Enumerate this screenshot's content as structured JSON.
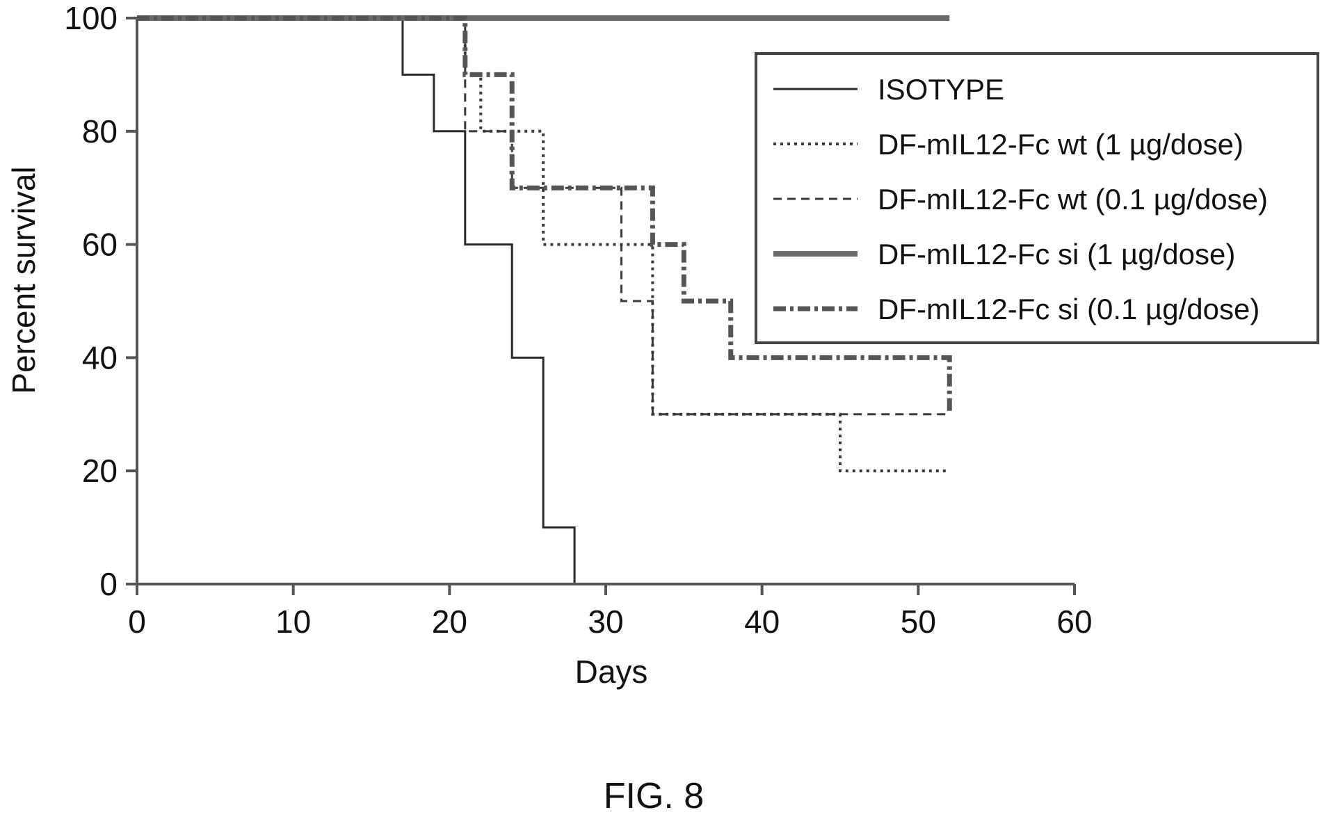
{
  "chart_data": {
    "type": "line",
    "xlabel": "Days",
    "ylabel": "Percent survival",
    "xlim": [
      0,
      60
    ],
    "ylim": [
      0,
      100
    ],
    "x_ticks": [
      0,
      10,
      20,
      30,
      40,
      50,
      60
    ],
    "y_ticks": [
      0,
      20,
      40,
      60,
      80,
      100
    ],
    "grid": false,
    "legend_position": "top-right",
    "step": true,
    "series": [
      {
        "name": "ISOTYPE",
        "style": "solid",
        "x": [
          0,
          17,
          19,
          21,
          24,
          26,
          28
        ],
        "y": [
          100,
          90,
          80,
          60,
          40,
          10,
          0
        ]
      },
      {
        "name": "DF-mIL12-Fc wt (1 µg/dose)",
        "style": "dotted",
        "x": [
          0,
          21,
          22,
          24,
          26,
          31,
          33,
          38,
          45,
          52
        ],
        "y": [
          100,
          90,
          80,
          80,
          60,
          60,
          30,
          30,
          20,
          20
        ]
      },
      {
        "name": "DF-mIL12-Fc wt (0.1 µg/dose)",
        "style": "dashed",
        "x": [
          0,
          21,
          24,
          26,
          31,
          33,
          52
        ],
        "y": [
          100,
          80,
          70,
          70,
          50,
          30,
          30
        ]
      },
      {
        "name": "DF-mIL12-Fc si (1 µg/dose)",
        "style": "bold",
        "x": [
          0,
          52
        ],
        "y": [
          100,
          100
        ]
      },
      {
        "name": "DF-mIL12-Fc si (0.1 µg/dose)",
        "style": "bold-dashdot",
        "x": [
          0,
          21,
          24,
          31,
          33,
          35,
          38,
          52
        ],
        "y": [
          100,
          90,
          70,
          70,
          60,
          50,
          40,
          30
        ]
      }
    ]
  },
  "figure_label": "FIG. 8"
}
